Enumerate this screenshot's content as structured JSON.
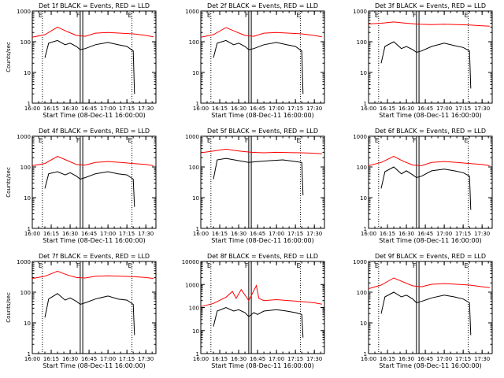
{
  "chart_data": [
    {
      "type": "line",
      "title": "Det 1f BLACK = Events, RED = LLD",
      "ylabel": "Counts/sec",
      "xlabel": "Start Time (08-Dec-11 16:00:00)",
      "xlim": [
        "16:00",
        "17:38"
      ],
      "ylim": [
        1,
        1000
      ],
      "log_y": true,
      "grid": false,
      "x_ticks": [
        "16:00",
        "16:15",
        "16:30",
        "16:45",
        "17:00",
        "17:15",
        "17:30"
      ],
      "y_ticks": [
        "1",
        "10",
        "100",
        "1000"
      ],
      "markers": [
        {
          "time": "16:08",
          "label": "E"
        },
        {
          "time": "16:38",
          "label": "F"
        },
        {
          "time": "16:40",
          "label": ""
        },
        {
          "time": "17:19",
          "label": "E"
        }
      ],
      "series": [
        {
          "name": "BLACK = Events",
          "color": "#000000",
          "x": [
            "16:10",
            "16:13",
            "16:20",
            "16:26",
            "16:30",
            "16:35",
            "16:38",
            "16:42",
            "16:50",
            "17:00",
            "17:08",
            "17:15",
            "17:20",
            "17:21"
          ],
          "y": [
            30,
            90,
            110,
            80,
            90,
            70,
            55,
            60,
            80,
            95,
            80,
            70,
            50,
            2
          ]
        },
        {
          "name": "RED = LLD",
          "color": "#ff0000",
          "x": [
            "16:00",
            "16:10",
            "16:20",
            "16:28",
            "16:35",
            "16:42",
            "16:50",
            "17:00",
            "17:10",
            "17:20",
            "17:30",
            "17:36"
          ],
          "y": [
            140,
            170,
            300,
            210,
            160,
            150,
            190,
            200,
            190,
            180,
            160,
            145
          ]
        }
      ]
    },
    {
      "type": "line",
      "title": "Det 2f BLACK = Events, RED = LLD",
      "ylabel": "",
      "xlabel": "Start Time (08-Dec-11 16:00:00)",
      "xlim": [
        "16:00",
        "17:38"
      ],
      "ylim": [
        1,
        1000
      ],
      "log_y": true,
      "grid": false,
      "x_ticks": [
        "16:00",
        "16:15",
        "16:30",
        "16:45",
        "17:00",
        "17:15",
        "17:30"
      ],
      "y_ticks": [
        "1",
        "10",
        "100",
        "1000"
      ],
      "markers": [
        {
          "time": "16:08",
          "label": "E"
        },
        {
          "time": "16:38",
          "label": "F"
        },
        {
          "time": "16:40",
          "label": ""
        },
        {
          "time": "17:19",
          "label": "E"
        }
      ],
      "series": [
        {
          "name": "BLACK = Events",
          "color": "#000000",
          "x": [
            "16:10",
            "16:13",
            "16:20",
            "16:26",
            "16:30",
            "16:35",
            "16:38",
            "16:42",
            "16:50",
            "17:00",
            "17:08",
            "17:15",
            "17:20",
            "17:21"
          ],
          "y": [
            30,
            90,
            110,
            80,
            90,
            70,
            55,
            60,
            80,
            95,
            80,
            70,
            50,
            2
          ]
        },
        {
          "name": "RED = LLD",
          "color": "#ff0000",
          "x": [
            "16:00",
            "16:10",
            "16:20",
            "16:28",
            "16:35",
            "16:42",
            "16:50",
            "17:00",
            "17:10",
            "17:20",
            "17:30",
            "17:36"
          ],
          "y": [
            140,
            170,
            290,
            210,
            160,
            150,
            190,
            200,
            190,
            180,
            160,
            145
          ]
        }
      ]
    },
    {
      "type": "line",
      "title": "Det 3f BLACK = Events, RED = LLD",
      "ylabel": "",
      "xlabel": "Start Time (08-Dec-11 16:00:00)",
      "xlim": [
        "16:00",
        "17:38"
      ],
      "ylim": [
        1,
        1000
      ],
      "log_y": true,
      "grid": false,
      "x_ticks": [
        "16:00",
        "16:15",
        "16:30",
        "16:45",
        "17:00",
        "17:15",
        "17:30"
      ],
      "y_ticks": [
        "1",
        "10",
        "100",
        "1000"
      ],
      "markers": [
        {
          "time": "16:08",
          "label": "E"
        },
        {
          "time": "16:38",
          "label": "F"
        },
        {
          "time": "16:40",
          "label": ""
        },
        {
          "time": "17:19",
          "label": "E"
        }
      ],
      "series": [
        {
          "name": "BLACK = Events",
          "color": "#000000",
          "x": [
            "16:10",
            "16:13",
            "16:20",
            "16:26",
            "16:30",
            "16:35",
            "16:38",
            "16:42",
            "16:50",
            "17:00",
            "17:08",
            "17:15",
            "17:20",
            "17:21"
          ],
          "y": [
            20,
            70,
            100,
            60,
            70,
            55,
            45,
            50,
            70,
            90,
            75,
            65,
            50,
            3
          ]
        },
        {
          "name": "RED = LLD",
          "color": "#ff0000",
          "x": [
            "16:00",
            "16:10",
            "16:20",
            "16:30",
            "16:40",
            "16:50",
            "17:00",
            "17:10",
            "17:20",
            "17:30",
            "17:36"
          ],
          "y": [
            380,
            400,
            440,
            400,
            370,
            360,
            370,
            360,
            350,
            330,
            320
          ]
        }
      ]
    },
    {
      "type": "line",
      "title": "Det 4f BLACK = Events, RED = LLD",
      "ylabel": "Counts/sec",
      "xlabel": "Start Time (08-Dec-11 16:00:00)",
      "xlim": [
        "16:00",
        "17:38"
      ],
      "ylim": [
        1,
        1000
      ],
      "log_y": true,
      "grid": false,
      "x_ticks": [
        "16:00",
        "16:15",
        "16:30",
        "16:45",
        "17:00",
        "17:15",
        "17:30"
      ],
      "y_ticks": [
        "1",
        "10",
        "100",
        "1000"
      ],
      "markers": [
        {
          "time": "16:08",
          "label": "E"
        },
        {
          "time": "16:38",
          "label": "F"
        },
        {
          "time": "16:40",
          "label": ""
        },
        {
          "time": "17:19",
          "label": "E"
        }
      ],
      "series": [
        {
          "name": "BLACK = Events",
          "color": "#000000",
          "x": [
            "16:10",
            "16:13",
            "16:20",
            "16:26",
            "16:30",
            "16:35",
            "16:38",
            "16:42",
            "16:50",
            "17:00",
            "17:08",
            "17:15",
            "17:20",
            "17:21"
          ],
          "y": [
            20,
            60,
            70,
            55,
            65,
            50,
            40,
            45,
            60,
            70,
            60,
            55,
            40,
            5
          ]
        },
        {
          "name": "RED = LLD",
          "color": "#ff0000",
          "x": [
            "16:00",
            "16:10",
            "16:20",
            "16:28",
            "16:35",
            "16:42",
            "16:50",
            "17:00",
            "17:10",
            "17:20",
            "17:30",
            "17:36"
          ],
          "y": [
            110,
            130,
            220,
            160,
            120,
            115,
            140,
            150,
            140,
            130,
            120,
            110
          ]
        }
      ]
    },
    {
      "type": "line",
      "title": "Det 5f BLACK = Events, RED = LLD",
      "ylabel": "",
      "xlabel": "Start Time (08-Dec-11 16:00:00)",
      "xlim": [
        "16:00",
        "17:38"
      ],
      "ylim": [
        1,
        1000
      ],
      "log_y": true,
      "grid": false,
      "x_ticks": [
        "16:00",
        "16:15",
        "16:30",
        "16:45",
        "17:00",
        "17:15",
        "17:30"
      ],
      "y_ticks": [
        "1",
        "10",
        "100",
        "1000"
      ],
      "markers": [
        {
          "time": "16:08",
          "label": "E"
        },
        {
          "time": "16:38",
          "label": "F"
        },
        {
          "time": "16:40",
          "label": ""
        },
        {
          "time": "17:19",
          "label": "E"
        }
      ],
      "series": [
        {
          "name": "BLACK = Events",
          "color": "#000000",
          "x": [
            "16:10",
            "16:13",
            "16:20",
            "16:30",
            "16:38",
            "16:45",
            "16:55",
            "17:05",
            "17:15",
            "17:20",
            "17:21"
          ],
          "y": [
            40,
            170,
            190,
            160,
            140,
            150,
            160,
            170,
            150,
            140,
            12
          ]
        },
        {
          "name": "RED = LLD",
          "color": "#ff0000",
          "x": [
            "16:00",
            "16:10",
            "16:20",
            "16:30",
            "16:40",
            "16:50",
            "17:00",
            "17:10",
            "17:20",
            "17:30",
            "17:36"
          ],
          "y": [
            290,
            330,
            380,
            330,
            300,
            290,
            300,
            295,
            290,
            280,
            270
          ]
        }
      ]
    },
    {
      "type": "line",
      "title": "Det 6f BLACK = Events, RED = LLD",
      "ylabel": "",
      "xlabel": "Start Time (08-Dec-11 16:00:00)",
      "xlim": [
        "16:00",
        "17:38"
      ],
      "ylim": [
        1,
        1000
      ],
      "log_y": true,
      "grid": false,
      "x_ticks": [
        "16:00",
        "16:15",
        "16:30",
        "16:45",
        "17:00",
        "17:15",
        "17:30"
      ],
      "y_ticks": [
        "1",
        "10",
        "100",
        "1000"
      ],
      "markers": [
        {
          "time": "16:08",
          "label": "E"
        },
        {
          "time": "16:38",
          "label": "F"
        },
        {
          "time": "16:40",
          "label": ""
        },
        {
          "time": "17:19",
          "label": "E"
        }
      ],
      "series": [
        {
          "name": "BLACK = Events",
          "color": "#000000",
          "x": [
            "16:10",
            "16:13",
            "16:20",
            "16:26",
            "16:30",
            "16:35",
            "16:38",
            "16:42",
            "16:50",
            "17:00",
            "17:08",
            "17:15",
            "17:20",
            "17:21"
          ],
          "y": [
            20,
            70,
            100,
            60,
            75,
            55,
            45,
            50,
            75,
            85,
            75,
            65,
            50,
            4
          ]
        },
        {
          "name": "RED = LLD",
          "color": "#ff0000",
          "x": [
            "16:00",
            "16:10",
            "16:20",
            "16:28",
            "16:35",
            "16:42",
            "16:50",
            "17:00",
            "17:10",
            "17:20",
            "17:30",
            "17:36"
          ],
          "y": [
            110,
            140,
            220,
            150,
            115,
            110,
            140,
            150,
            140,
            130,
            120,
            110
          ]
        }
      ]
    },
    {
      "type": "line",
      "title": "Det 7f BLACK = Events, RED = LLD",
      "ylabel": "Counts/sec",
      "xlabel": "Start Time (08-Dec-11 16:00:00)",
      "xlim": [
        "16:00",
        "17:38"
      ],
      "ylim": [
        1,
        1000
      ],
      "log_y": true,
      "grid": false,
      "x_ticks": [
        "16:00",
        "16:15",
        "16:30",
        "16:45",
        "17:00",
        "17:15",
        "17:30"
      ],
      "y_ticks": [
        "1",
        "10",
        "100",
        "1000"
      ],
      "markers": [
        {
          "time": "16:08",
          "label": "E"
        },
        {
          "time": "16:38",
          "label": "F"
        },
        {
          "time": "16:40",
          "label": ""
        },
        {
          "time": "17:19",
          "label": "E"
        }
      ],
      "series": [
        {
          "name": "BLACK = Events",
          "color": "#000000",
          "x": [
            "16:10",
            "16:13",
            "16:20",
            "16:26",
            "16:30",
            "16:35",
            "16:38",
            "16:42",
            "16:50",
            "17:00",
            "17:08",
            "17:15",
            "17:20",
            "17:21"
          ],
          "y": [
            15,
            60,
            90,
            55,
            65,
            50,
            40,
            45,
            60,
            75,
            60,
            55,
            40,
            4
          ]
        },
        {
          "name": "RED = LLD",
          "color": "#ff0000",
          "x": [
            "16:00",
            "16:10",
            "16:20",
            "16:28",
            "16:35",
            "16:42",
            "16:50",
            "17:00",
            "17:10",
            "17:20",
            "17:30",
            "17:36"
          ],
          "y": [
            280,
            330,
            480,
            360,
            300,
            290,
            330,
            340,
            330,
            320,
            300,
            280
          ]
        }
      ]
    },
    {
      "type": "line",
      "title": "Det 8f BLACK = Events, RED = LLD",
      "ylabel": "",
      "xlabel": "Start Time (08-Dec-11 16:00:00)",
      "xlim": [
        "16:00",
        "17:38"
      ],
      "ylim": [
        1,
        10000
      ],
      "log_y": true,
      "grid": false,
      "x_ticks": [
        "16:00",
        "16:15",
        "16:30",
        "16:45",
        "17:00",
        "17:15",
        "17:30"
      ],
      "y_ticks": [
        "1",
        "10",
        "100",
        "1000",
        "10000"
      ],
      "markers": [
        {
          "time": "16:08",
          "label": "E"
        },
        {
          "time": "16:38",
          "label": "F"
        },
        {
          "time": "16:40",
          "label": ""
        },
        {
          "time": "17:19",
          "label": "E"
        }
      ],
      "series": [
        {
          "name": "BLACK = Events",
          "color": "#000000",
          "x": [
            "16:10",
            "16:13",
            "16:20",
            "16:26",
            "16:30",
            "16:35",
            "16:38",
            "16:42",
            "16:45",
            "16:50",
            "17:00",
            "17:08",
            "17:15",
            "17:20",
            "17:21"
          ],
          "y": [
            15,
            70,
            100,
            70,
            80,
            60,
            40,
            60,
            50,
            70,
            80,
            70,
            60,
            50,
            5
          ]
        },
        {
          "name": "RED = LLD",
          "color": "#ff0000",
          "x": [
            "16:00",
            "16:10",
            "16:20",
            "16:25",
            "16:28",
            "16:32",
            "16:38",
            "16:44",
            "16:46",
            "16:50",
            "17:00",
            "17:10",
            "17:20",
            "17:30",
            "17:36"
          ],
          "y": [
            110,
            150,
            280,
            500,
            250,
            600,
            200,
            900,
            250,
            200,
            220,
            200,
            180,
            160,
            140
          ]
        }
      ]
    },
    {
      "type": "line",
      "title": "Det 9f BLACK = Events, RED = LLD",
      "ylabel": "",
      "xlabel": "Start Time (08-Dec-11 16:00:00)",
      "xlim": [
        "16:00",
        "17:38"
      ],
      "ylim": [
        1,
        1000
      ],
      "log_y": true,
      "grid": false,
      "x_ticks": [
        "16:00",
        "16:15",
        "16:30",
        "16:45",
        "17:00",
        "17:15",
        "17:30"
      ],
      "y_ticks": [
        "1",
        "10",
        "100",
        "1000"
      ],
      "markers": [
        {
          "time": "16:08",
          "label": "E"
        },
        {
          "time": "16:38",
          "label": "F"
        },
        {
          "time": "16:40",
          "label": ""
        },
        {
          "time": "17:19",
          "label": "E"
        }
      ],
      "series": [
        {
          "name": "BLACK = Events",
          "color": "#000000",
          "x": [
            "16:10",
            "16:13",
            "16:20",
            "16:26",
            "16:30",
            "16:35",
            "16:38",
            "16:42",
            "16:50",
            "17:00",
            "17:08",
            "17:15",
            "17:20",
            "17:21"
          ],
          "y": [
            20,
            70,
            100,
            70,
            80,
            60,
            45,
            50,
            65,
            80,
            70,
            60,
            45,
            4
          ]
        },
        {
          "name": "RED = LLD",
          "color": "#ff0000",
          "x": [
            "16:00",
            "16:10",
            "16:20",
            "16:28",
            "16:35",
            "16:42",
            "16:50",
            "17:00",
            "17:10",
            "17:20",
            "17:30",
            "17:36"
          ],
          "y": [
            130,
            170,
            290,
            210,
            160,
            150,
            180,
            190,
            180,
            170,
            150,
            140
          ]
        }
      ]
    }
  ]
}
